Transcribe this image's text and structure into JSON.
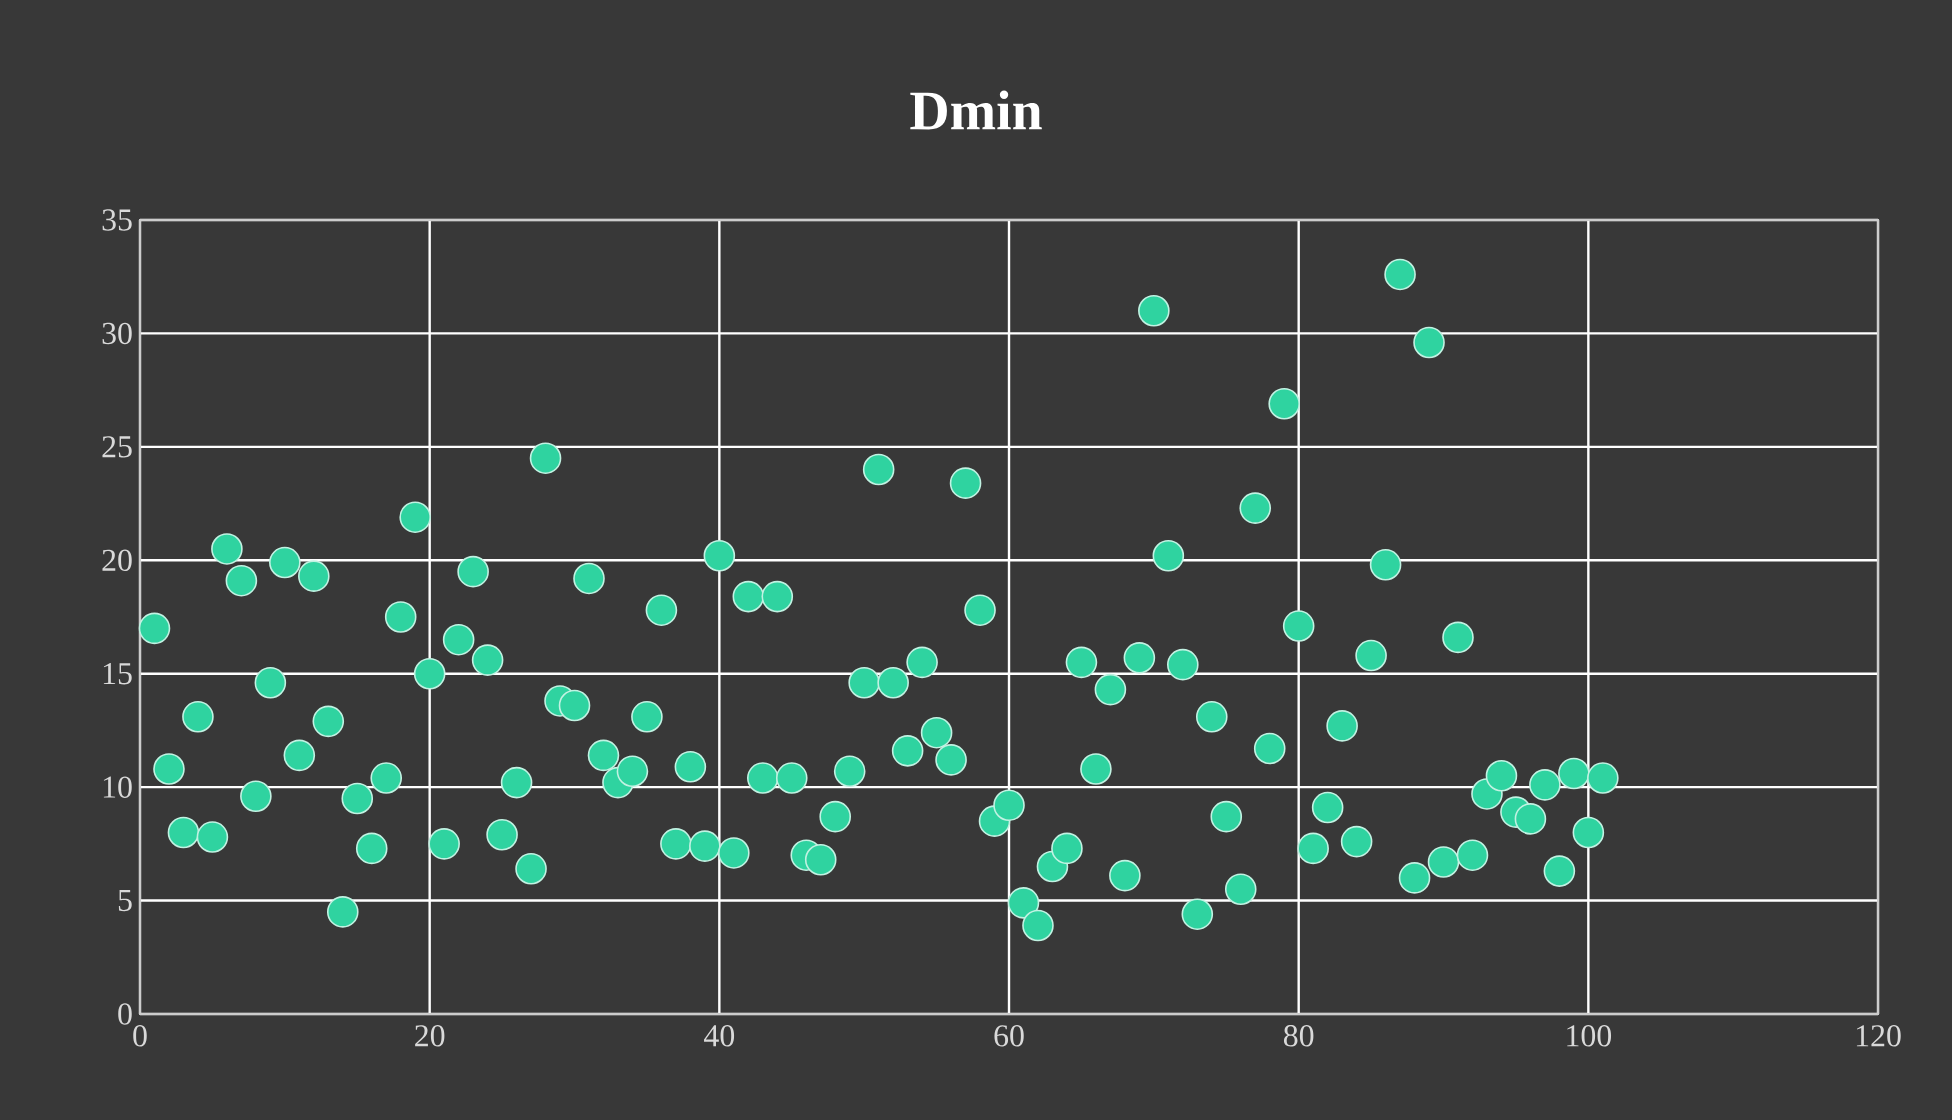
{
  "chart_data": {
    "type": "scatter",
    "title": "Dmin",
    "x": [
      1,
      2,
      3,
      4,
      5,
      6,
      7,
      8,
      9,
      10,
      11,
      12,
      13,
      14,
      15,
      16,
      17,
      18,
      19,
      20,
      21,
      22,
      23,
      24,
      25,
      26,
      27,
      28,
      29,
      30,
      31,
      32,
      33,
      34,
      35,
      36,
      37,
      38,
      39,
      40,
      41,
      42,
      43,
      44,
      45,
      46,
      47,
      48,
      49,
      50,
      51,
      52,
      53,
      54,
      55,
      56,
      57,
      58,
      59,
      60,
      61,
      62,
      63,
      64,
      65,
      66,
      67,
      68,
      69,
      70,
      71,
      72,
      73,
      74,
      75,
      76,
      77,
      78,
      79,
      80,
      81,
      82,
      83,
      84,
      85,
      86,
      87,
      88,
      89,
      90,
      91,
      92,
      93,
      94,
      95,
      96,
      97,
      98,
      99,
      100,
      101
    ],
    "values": [
      17.0,
      10.8,
      8.0,
      13.1,
      7.8,
      20.5,
      19.1,
      9.6,
      14.6,
      19.9,
      11.4,
      19.3,
      12.9,
      4.5,
      9.5,
      7.3,
      10.4,
      17.5,
      21.9,
      15.0,
      7.5,
      16.5,
      19.5,
      15.6,
      7.9,
      10.2,
      6.4,
      24.5,
      13.8,
      13.6,
      19.2,
      11.4,
      10.2,
      10.7,
      13.1,
      17.8,
      7.5,
      10.9,
      7.4,
      20.2,
      7.1,
      18.4,
      10.4,
      18.4,
      10.4,
      7.0,
      6.8,
      8.7,
      10.7,
      14.6,
      24.0,
      14.6,
      11.6,
      15.5,
      12.4,
      11.2,
      23.4,
      17.8,
      8.5,
      9.2,
      4.9,
      3.9,
      6.5,
      7.3,
      15.5,
      10.8,
      14.3,
      6.1,
      15.7,
      31.0,
      20.2,
      15.4,
      4.4,
      13.1,
      8.7,
      5.5,
      22.3,
      11.7,
      26.9,
      17.1,
      7.3,
      9.1,
      12.7,
      7.6,
      15.8,
      19.8,
      32.6,
      6.0,
      29.6,
      6.7,
      16.6,
      7.0,
      9.7,
      10.5,
      8.9,
      8.6,
      10.1,
      6.3,
      10.6,
      8.0,
      10.4
    ],
    "color": "#2fd3a0",
    "marker": "circle",
    "grid": true,
    "xlim": [
      0,
      120
    ],
    "ylim": [
      0,
      35
    ],
    "xticks": [
      0,
      20,
      40,
      60,
      80,
      100,
      120
    ],
    "yticks": [
      0,
      5,
      10,
      15,
      20,
      25,
      30,
      35
    ]
  }
}
